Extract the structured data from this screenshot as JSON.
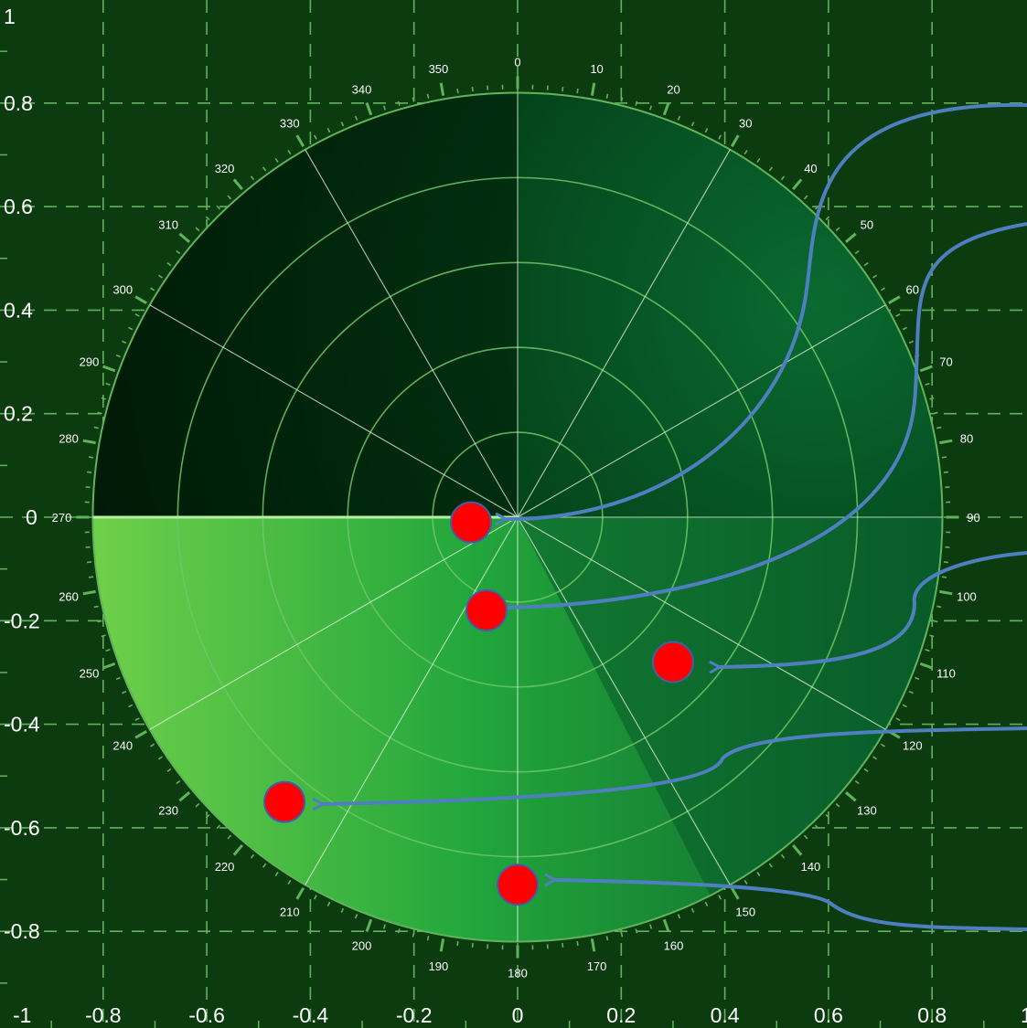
{
  "chart_data": {
    "type": "scatter",
    "title": "",
    "xlabel": "",
    "ylabel": "",
    "xlim": [
      -1,
      1
    ],
    "ylim": [
      -1,
      1
    ],
    "grid": true,
    "x_ticks": [
      "-1",
      "-0.8",
      "-0.6",
      "-0.4",
      "-0.2",
      "0",
      "0.2",
      "0.4",
      "0.6",
      "0.8",
      "1"
    ],
    "y_ticks": [
      "1",
      "0.8",
      "0.6",
      "0.4",
      "0.2",
      "0",
      "-0.2",
      "-0.4",
      "-0.6",
      "-0.8"
    ],
    "polar": {
      "center": [
        0,
        0
      ],
      "radius": 0.82,
      "angle_labels": [
        "0",
        "10",
        "20",
        "30",
        "40",
        "50",
        "60",
        "70",
        "80",
        "90",
        "100",
        "110",
        "120",
        "130",
        "140",
        "150",
        "160",
        "170",
        "180",
        "190",
        "200",
        "210",
        "220",
        "230",
        "240",
        "250",
        "260",
        "270",
        "280",
        "290",
        "300",
        "310",
        "320",
        "330",
        "340",
        "350"
      ],
      "rings": 5,
      "spokes_every_deg": 30
    },
    "series": [
      {
        "x": [
          -0.09,
          -0.06,
          0.3,
          -0.45,
          0.0
        ],
        "y": [
          -0.01,
          -0.18,
          -0.28,
          -0.55,
          -0.71
        ]
      }
    ],
    "arrows": [
      {
        "to_x": -0.02,
        "to_y": 0.0
      },
      {
        "to_x": -0.02,
        "to_y": -0.18
      },
      {
        "to_x": 0.38,
        "to_y": -0.29
      },
      {
        "to_x": -0.38,
        "to_y": -0.56
      },
      {
        "to_x": 0.06,
        "to_y": -0.71
      }
    ],
    "colors": {
      "background": "#0c3b10",
      "grid": "#5fb35a",
      "point": "#ff0000",
      "point_stroke": "#3f5fa8",
      "arrow": "#4f7fc0",
      "sweep_line": "#b6f0a0"
    }
  }
}
